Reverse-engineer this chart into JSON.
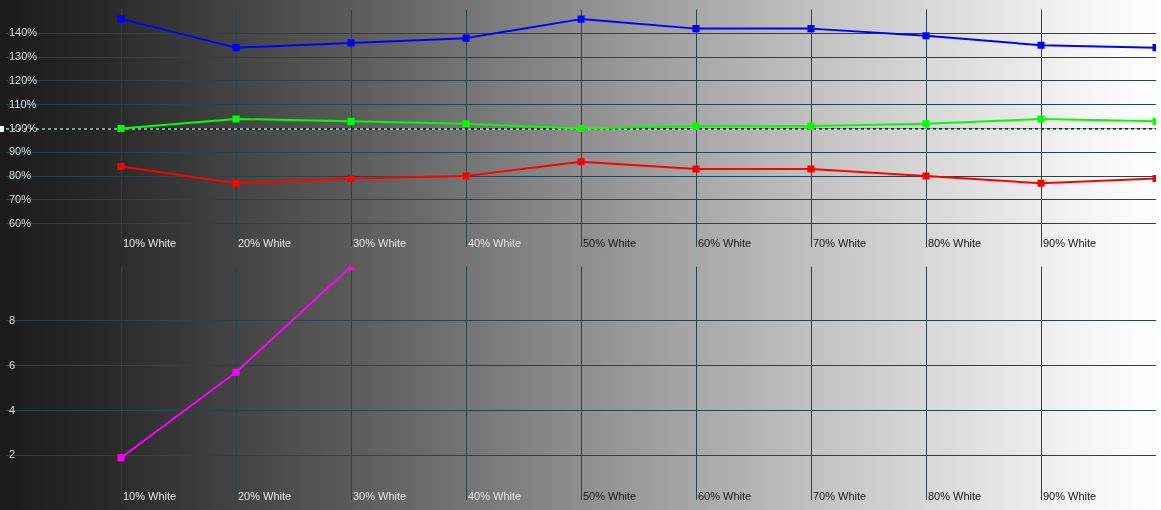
{
  "chart_data": [
    {
      "type": "line",
      "categories": [
        null,
        "10% White",
        "20% White",
        "30% White",
        "40% White",
        "50% White",
        "60% White",
        "70% White",
        "80% White",
        "90% White",
        null
      ],
      "series": [
        {
          "color": "#0000ff",
          "values": [
            null,
            146,
            134,
            136,
            138,
            146,
            142,
            142,
            139,
            135,
            134
          ]
        },
        {
          "color": "#00ff00",
          "values": [
            null,
            100,
            104,
            103,
            102,
            100,
            101,
            101,
            102,
            104,
            103
          ]
        },
        {
          "color": "#ff0000",
          "values": [
            null,
            84,
            77,
            79,
            80,
            86,
            83,
            83,
            80,
            77,
            79
          ]
        }
      ],
      "ylim": [
        50,
        150
      ],
      "yticks": [
        {
          "value": 60,
          "label": "60%"
        },
        {
          "value": 70,
          "label": "70%"
        },
        {
          "value": 80,
          "label": "80%"
        },
        {
          "value": 90,
          "label": "90%"
        },
        {
          "value": 100,
          "label": "100%"
        },
        {
          "value": 110,
          "label": "110%"
        },
        {
          "value": 120,
          "label": "120%"
        },
        {
          "value": 130,
          "label": "130%"
        },
        {
          "value": 140,
          "label": "140%"
        }
      ],
      "grid": true,
      "marker": "square",
      "ref_lines": [
        {
          "axis": "y",
          "value": 100,
          "line_style": "dashed",
          "color": "#ffffff"
        },
        {
          "axis": "y",
          "value": 100,
          "line_style": "dashed",
          "color": "#000000"
        }
      ]
    },
    {
      "type": "line",
      "categories": [
        null,
        "10% White",
        "20% White",
        "30% White",
        "40% White",
        "50% White",
        "60% White",
        "70% White",
        "80% White",
        "90% White",
        null
      ],
      "series": [
        {
          "color": "#ff00ff",
          "values": [
            null,
            1.9,
            5.7,
            10.4,
            null,
            null,
            null,
            null,
            null,
            null,
            null
          ]
        }
      ],
      "ylim": [
        0,
        10.4
      ],
      "yticks": [
        2,
        4,
        6,
        8
      ],
      "grid": true,
      "marker": "square"
    }
  ]
}
